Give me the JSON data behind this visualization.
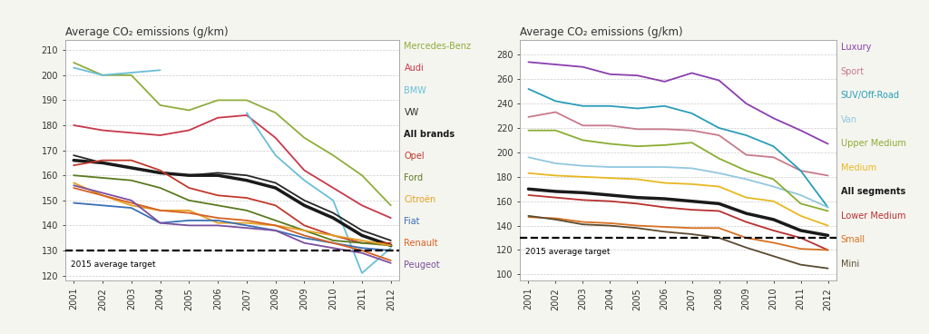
{
  "years": [
    2001,
    2002,
    2003,
    2004,
    2005,
    2006,
    2007,
    2008,
    2009,
    2010,
    2011,
    2012
  ],
  "chart1": {
    "title": "Average CO₂ emissions (g/km)",
    "ylim": [
      118,
      214
    ],
    "yticks": [
      120,
      130,
      140,
      150,
      160,
      170,
      180,
      190,
      200,
      210
    ],
    "target_line": 130,
    "target_label": "2015 average target",
    "series": {
      "Mercedes-Benz": {
        "color": "#8fad3c",
        "lw": 1.3,
        "data": [
          205,
          200,
          200,
          188,
          186,
          190,
          190,
          185,
          175,
          168,
          160,
          148
        ]
      },
      "Audi": {
        "color": "#c8374a",
        "lw": 1.3,
        "data": [
          180,
          178,
          177,
          176,
          178,
          183,
          184,
          175,
          162,
          155,
          148,
          143
        ]
      },
      "BMW": {
        "color": "#6abed8",
        "lw": 1.3,
        "data": [
          203,
          200,
          201,
          202,
          null,
          null,
          185,
          168,
          158,
          150,
          121,
          131
        ]
      },
      "VW": {
        "color": "#282828",
        "lw": 1.3,
        "data": [
          168,
          165,
          163,
          161,
          160,
          161,
          160,
          157,
          150,
          145,
          138,
          134
        ]
      },
      "All brands": {
        "color": "#1a1a1a",
        "lw": 2.5,
        "bold": true,
        "data": [
          166,
          165,
          163,
          161,
          160,
          160,
          158,
          155,
          148,
          143,
          136,
          132
        ]
      },
      "Opel": {
        "color": "#c0392b",
        "lw": 1.3,
        "data": [
          164,
          166,
          166,
          162,
          155,
          152,
          151,
          148,
          140,
          136,
          133,
          133
        ]
      },
      "Ford": {
        "color": "#5a7a20",
        "lw": 1.3,
        "data": [
          160,
          159,
          158,
          155,
          150,
          148,
          146,
          142,
          138,
          134,
          133,
          132
        ]
      },
      "Citroën": {
        "color": "#e3a020",
        "lw": 1.3,
        "data": [
          157,
          152,
          148,
          146,
          146,
          141,
          141,
          140,
          138,
          136,
          134,
          132
        ]
      },
      "Fiat": {
        "color": "#3a6fb5",
        "lw": 1.3,
        "data": [
          149,
          148,
          147,
          141,
          142,
          142,
          140,
          138,
          135,
          133,
          131,
          130
        ]
      },
      "Renault": {
        "color": "#d86020",
        "lw": 1.3,
        "data": [
          155,
          152,
          149,
          146,
          145,
          143,
          142,
          140,
          136,
          133,
          130,
          126
        ]
      },
      "Peugeot": {
        "color": "#7b4fa0",
        "lw": 1.3,
        "data": [
          156,
          153,
          150,
          141,
          140,
          140,
          139,
          138,
          133,
          131,
          129,
          125
        ]
      }
    },
    "legend_order": [
      "Mercedes-Benz",
      "Audi",
      "BMW",
      "VW",
      "All brands",
      "Opel",
      "Ford",
      "Citroën",
      "Fiat",
      "Renault",
      "Peugeot"
    ]
  },
  "chart2": {
    "title": "Average CO₂ emissions (g/km)",
    "ylim": [
      95,
      292
    ],
    "yticks": [
      100,
      120,
      140,
      160,
      180,
      200,
      220,
      240,
      260,
      280
    ],
    "target_line": 130,
    "target_label": "2015 average target",
    "series": {
      "Luxury": {
        "color": "#8a3fad",
        "lw": 1.3,
        "data": [
          274,
          272,
          270,
          264,
          263,
          258,
          265,
          259,
          240,
          228,
          218,
          207
        ]
      },
      "Sport": {
        "color": "#c87a8a",
        "lw": 1.3,
        "data": [
          229,
          233,
          222,
          222,
          219,
          219,
          218,
          214,
          198,
          196,
          185,
          181
        ]
      },
      "SUV/Off-Road": {
        "color": "#2a9db8",
        "lw": 1.3,
        "data": [
          252,
          242,
          238,
          238,
          236,
          238,
          232,
          220,
          214,
          205,
          185,
          155
        ]
      },
      "Van": {
        "color": "#90c8e0",
        "lw": 1.3,
        "data": [
          196,
          191,
          189,
          188,
          188,
          188,
          187,
          183,
          178,
          172,
          165,
          155
        ]
      },
      "Upper Medium": {
        "color": "#8aad30",
        "lw": 1.3,
        "data": [
          218,
          218,
          210,
          207,
          205,
          206,
          208,
          195,
          185,
          178,
          158,
          152
        ]
      },
      "Medium": {
        "color": "#e8b820",
        "lw": 1.3,
        "data": [
          183,
          181,
          180,
          179,
          178,
          175,
          174,
          172,
          163,
          160,
          148,
          140
        ]
      },
      "All segments": {
        "color": "#1a1a1a",
        "lw": 2.5,
        "bold": true,
        "data": [
          170,
          168,
          167,
          165,
          163,
          162,
          160,
          158,
          150,
          145,
          136,
          132
        ]
      },
      "Lower Medium": {
        "color": "#b83030",
        "lw": 1.3,
        "data": [
          165,
          163,
          161,
          160,
          158,
          155,
          153,
          152,
          143,
          136,
          130,
          120
        ]
      },
      "Small": {
        "color": "#d87020",
        "lw": 1.3,
        "data": [
          147,
          146,
          143,
          142,
          140,
          139,
          138,
          138,
          130,
          126,
          121,
          120
        ]
      },
      "Mini": {
        "color": "#5a4a30",
        "lw": 1.3,
        "data": [
          148,
          145,
          141,
          140,
          138,
          135,
          133,
          130,
          122,
          115,
          108,
          105
        ]
      }
    },
    "legend_order": [
      "Luxury",
      "Sport",
      "SUV/Off-Road",
      "Van",
      "Upper Medium",
      "Medium",
      "All segments",
      "Lower Medium",
      "Small",
      "Mini"
    ]
  },
  "fig_bg": "#f5f5f0",
  "plot_bg": "#ffffff",
  "grid_color": "#aaaaaa",
  "axis_color": "#888888",
  "text_color": "#333333",
  "title_fontsize": 8.5,
  "tick_fontsize": 7,
  "legend_fontsize": 7
}
